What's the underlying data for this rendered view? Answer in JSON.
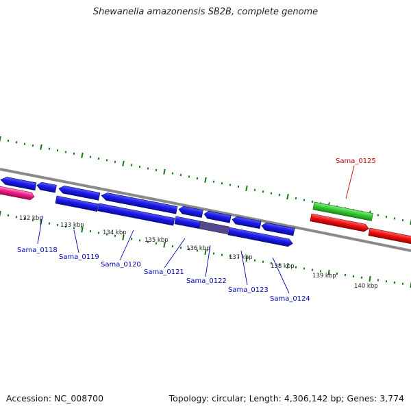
{
  "title": "Shewanella amazonensis SB2B, complete genome",
  "footer": {
    "accession": "Accession: NC_008700",
    "summary": "Topology: circular; Length: 4,306,142 bp; Genes: 3,774"
  },
  "ticks": {
    "unit": "kbp",
    "labels": [
      "132 kbp",
      "133 kbp",
      "134 kbp",
      "135 kbp",
      "136 kbp",
      "137 kbp",
      "138 kbp",
      "139 kbp",
      "140 kbp"
    ]
  },
  "gene_labels": [
    {
      "name": "Sama_0118",
      "color": "#0000b4"
    },
    {
      "name": "Sama_0119",
      "color": "#0000b4"
    },
    {
      "name": "Sama_0120",
      "color": "#0000b4"
    },
    {
      "name": "Sama_0121",
      "color": "#0000b4"
    },
    {
      "name": "Sama_0122",
      "color": "#0000b4"
    },
    {
      "name": "Sama_0123",
      "color": "#0000b4"
    },
    {
      "name": "Sama_0124",
      "color": "#0000b4"
    },
    {
      "name": "Sama_0125",
      "color": "#c00000"
    }
  ],
  "colors": {
    "backbone": "#888888",
    "tick": "#117711",
    "gene_blue": "#1a1ae6",
    "gene_red": "#e81111",
    "gene_green": "#33cc33",
    "gene_pink": "#ee2288",
    "overlap": "#55478c"
  }
}
